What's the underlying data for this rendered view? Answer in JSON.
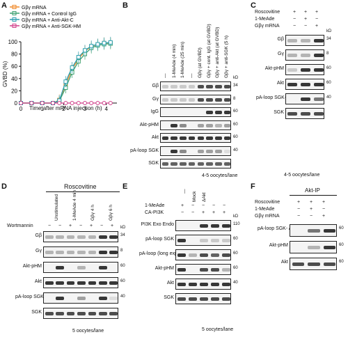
{
  "panels": {
    "a": "A",
    "b": "B",
    "c": "C",
    "d": "D",
    "e": "E",
    "f": "F"
  },
  "chart_data": {
    "type": "line",
    "xlabel": "Time after mRNA injection (h)",
    "ylabel": "GVBD (%)",
    "xlim": [
      0,
      4.5
    ],
    "ylim": [
      0,
      100
    ],
    "xticks": [
      "0",
      "1",
      "2",
      "3",
      "4"
    ],
    "yticks": [
      "0",
      "20",
      "40",
      "60",
      "80",
      "100"
    ],
    "legend_position": "top-left",
    "series": [
      {
        "name": "Gβγ mRNA",
        "color": "#f08a2a",
        "x": [
          0,
          0.5,
          1,
          1.5,
          1.8,
          2.1,
          2.4,
          2.7,
          3.0,
          3.3,
          3.6,
          3.9,
          4.2
        ],
        "y": [
          0,
          0,
          0,
          0,
          5,
          30,
          55,
          72,
          85,
          92,
          96,
          98,
          98
        ]
      },
      {
        "name": "Gβγ mRNA + Control IgG",
        "color": "#3aa070",
        "x": [
          0,
          0.5,
          1,
          1.5,
          1.8,
          2.1,
          2.4,
          2.7,
          3.0,
          3.3,
          3.6,
          3.9,
          4.2
        ],
        "y": [
          0,
          0,
          0,
          0,
          3,
          25,
          50,
          68,
          80,
          90,
          94,
          96,
          97
        ]
      },
      {
        "name": "Gβγ mRNA + Anti-Akt-C",
        "color": "#2a9fb0",
        "x": [
          0,
          0.5,
          1,
          1.5,
          1.8,
          2.1,
          2.4,
          2.7,
          3.0,
          3.3,
          3.6,
          3.9,
          4.2
        ],
        "y": [
          0,
          0,
          0,
          0,
          4,
          35,
          58,
          75,
          86,
          93,
          96,
          98,
          99
        ]
      },
      {
        "name": "Gβγ mRNA + Anti-SGK-HM",
        "color": "#d0408a",
        "x": [
          0,
          0.5,
          1,
          1.5,
          1.8,
          2.1,
          2.4,
          2.7,
          3.0,
          3.3,
          3.6,
          3.9,
          4.2
        ],
        "y": [
          0,
          0,
          0,
          0,
          0,
          0,
          0,
          0,
          0,
          0,
          0,
          0,
          0
        ]
      }
    ]
  },
  "b": {
    "lanes": [
      "—",
      "1-MeAde (4 min)",
      "1-MeAde (25 min)",
      "—",
      "Gβγ (at GVBD)",
      "Gβγ + cont. IgG (at GVBD)",
      "Gβγ + anti-Akt (at GVBD)",
      "Gβγ + anti-SGK (5 h)"
    ],
    "rows": [
      "Gβ",
      "Gγ",
      "IgG",
      "Akt-pHM",
      "Akt",
      "pA-loop SGK",
      "SGK"
    ],
    "kd": [
      "kD",
      "34",
      "8",
      "60",
      "60",
      "60",
      "40"
    ],
    "footer": "4-5 oocytes/lane"
  },
  "c": {
    "conds": [
      "Roscovitine",
      "1-MeAde",
      "Gβγ mRNA"
    ],
    "signs": [
      [
        "+",
        "+",
        "+"
      ],
      [
        "−",
        "+",
        "−"
      ],
      [
        "−",
        "−",
        "+"
      ]
    ],
    "rows": [
      "Gβ",
      "Gγ",
      "Akt-pHM",
      "Akt",
      "pA-loop SGK-",
      "SGK"
    ],
    "kd": [
      "kD",
      "34",
      "8",
      "60",
      "60",
      "40"
    ],
    "footer": "4-5 oocytes/lane"
  },
  "d": {
    "header": "Roscovitine",
    "lanes": [
      "Unstimulated",
      "1-MeAde 4 min",
      "Gβγ 4 h",
      "Gβγ 6 h"
    ],
    "wort": "Wortmannin",
    "wsigns": [
      "−",
      "−",
      "+",
      "−",
      "+",
      "−",
      "+"
    ],
    "rows": [
      "Gβ",
      "Gγ",
      "Akt-pHM",
      "Akt",
      "pA-loop SGK",
      "SGK"
    ],
    "kd": [
      "kD",
      "34",
      "8",
      "60",
      "60",
      "40"
    ],
    "footer": "5 oocytes/lane"
  },
  "e": {
    "conds": [
      "1-MeAde",
      "CA-PI3K"
    ],
    "lanes": [
      "—",
      "Mock",
      "ΔAkt"
    ],
    "signs": [
      [
        "+",
        "−",
        "−",
        "−",
        "−"
      ],
      [
        "−",
        "−",
        "+",
        "+",
        "+"
      ]
    ],
    "rows": [
      "PI3K Exo Endo",
      "pA-loop SGK",
      "pA-loop (long exp.) SGK Akt",
      "Akt-pHM",
      "Akt",
      "SGK"
    ],
    "kd": [
      "kD",
      "110",
      "60",
      "60",
      "60",
      "40"
    ],
    "footer": "5 oocytes/lane"
  },
  "f": {
    "header": "Akt-IP",
    "conds": [
      "Roscovitine",
      "1-MeAde",
      "Gβγ mRNA"
    ],
    "signs": [
      [
        "+",
        "+",
        "+"
      ],
      [
        "−",
        "+",
        "−"
      ],
      [
        "−",
        "−",
        "+"
      ]
    ],
    "rows": [
      "pA-loop SGK- Akt",
      "Akt-pHM",
      "Akt"
    ],
    "kd": [
      "60",
      "60",
      "60"
    ]
  }
}
